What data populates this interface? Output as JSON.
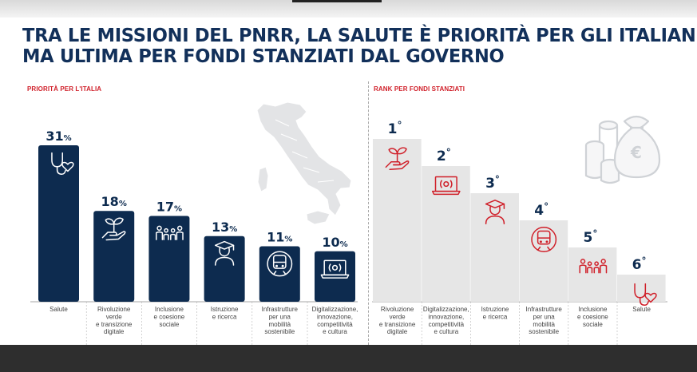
{
  "title": {
    "line1": "TRA LE MISSIONI DEL PNRR, LA SALUTE È PRIORITÀ PER GLI ITALIANI",
    "line2": "MA ULTIMA PER FONDI STANZIATI DAL GOVERNO"
  },
  "colors": {
    "navy": "#0d2b4f",
    "red": "#d0202a",
    "gray_step": "#e6e6e6"
  },
  "chart_data": [
    {
      "type": "bar",
      "title": "PRIORITÀ PER L'ITALIA",
      "unit": "%",
      "categories": [
        "Salute",
        "Rivoluzione verde e transizione digitale",
        "Inclusione e coesione sociale",
        "Istruzione e ricerca",
        "Infrastrutture per una mobilità sostenibile",
        "Digitalizzazione, innovazione, competitività e cultura"
      ],
      "category_lines": [
        [
          "Salute"
        ],
        [
          "Rivoluzione",
          "verde",
          "e transizione",
          "digitale"
        ],
        [
          "Inclusione",
          "e coesione",
          "sociale"
        ],
        [
          "Istruzione",
          "e ricerca"
        ],
        [
          "Infrastrutture",
          "per una",
          "mobilità",
          "sostenibile"
        ],
        [
          "Digitalizzazione,",
          "innovazione,",
          "competitività",
          "e cultura"
        ]
      ],
      "values": [
        31,
        18,
        17,
        13,
        11,
        10
      ],
      "icons": [
        "stethoscope-heart-icon",
        "hand-sprout-icon",
        "people-group-icon",
        "graduate-icon",
        "train-icon",
        "laptop-icon"
      ]
    },
    {
      "type": "bar",
      "title": "RANK PER FONDI STANZIATI",
      "unit": "°",
      "categories": [
        "Rivoluzione verde e transizione digitale",
        "Digitalizzazione, innovazione, competitività e cultura",
        "Istruzione e ricerca",
        "Infrastrutture per una mobilità sostenibile",
        "Inclusione e coesione sociale",
        "Salute"
      ],
      "category_lines": [
        [
          "Rivoluzione",
          "verde",
          "e transizione",
          "digitale"
        ],
        [
          "Digitalizzazione,",
          "innovazione,",
          "competitività",
          "e cultura"
        ],
        [
          "Istruzione",
          "e ricerca"
        ],
        [
          "Infrastrutture",
          "per una",
          "mobilità",
          "sostenibile"
        ],
        [
          "Inclusione",
          "e coesione",
          "sociale"
        ],
        [
          "Salute"
        ]
      ],
      "values": [
        1,
        2,
        3,
        4,
        5,
        6
      ],
      "icons": [
        "hand-sprout-icon",
        "laptop-icon",
        "graduate-icon",
        "train-icon",
        "people-group-icon",
        "stethoscope-heart-icon"
      ]
    }
  ]
}
